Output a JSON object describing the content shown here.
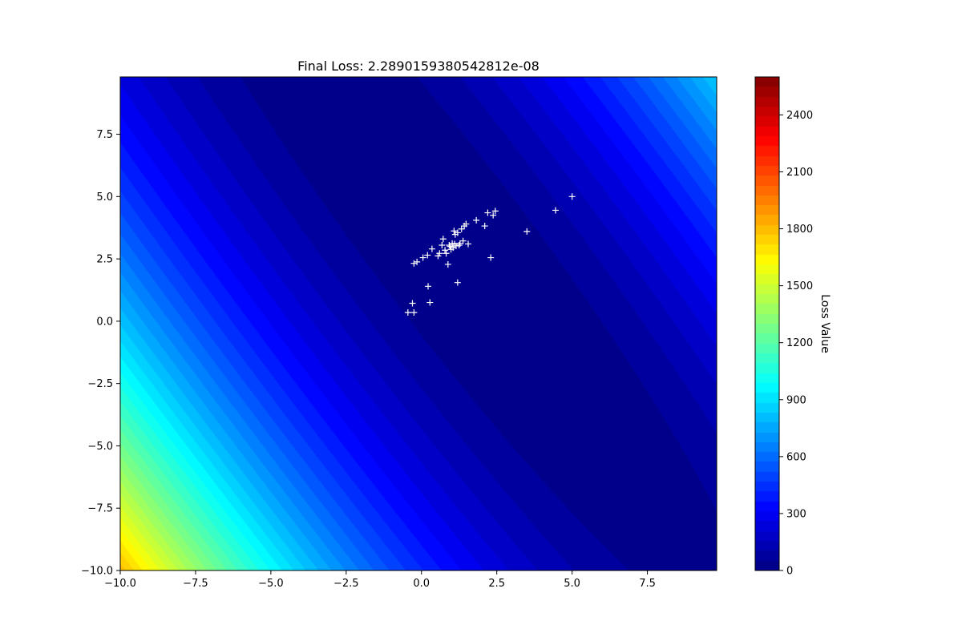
{
  "chart_data": {
    "type": "contour",
    "title": "Final Loss: 2.2890159380542812e-08",
    "xlabel": "",
    "ylabel": "",
    "xlim": [
      -10,
      9.8
    ],
    "ylim": [
      -10,
      9.8
    ],
    "x_ticks": [
      -10.0,
      -7.5,
      -5.0,
      -2.5,
      0.0,
      2.5,
      5.0,
      7.5
    ],
    "x_tick_labels": [
      "−10.0",
      "−7.5",
      "−5.0",
      "−2.5",
      "0.0",
      "2.5",
      "5.0",
      "7.5"
    ],
    "y_ticks": [
      -10.0,
      -7.5,
      -5.0,
      -2.5,
      0.0,
      2.5,
      5.0,
      7.5
    ],
    "y_tick_labels": [
      "−10.0",
      "−7.5",
      "−5.0",
      "−2.5",
      "0.0",
      "2.5",
      "5.0",
      "7.5"
    ],
    "colormap": "jet",
    "colorbar": {
      "label": "Loss Value",
      "range": [
        0,
        2600
      ],
      "levels": 50,
      "ticks": [
        0,
        300,
        600,
        900,
        1200,
        1500,
        1800,
        2100,
        2400
      ],
      "tick_labels": [
        "0",
        "300",
        "600",
        "900",
        "1200",
        "1500",
        "1800",
        "2100",
        "2400"
      ]
    },
    "surface": {
      "minimum": [
        1,
        3
      ],
      "quadratic": {
        "a": 5,
        "b": 6,
        "c": 2
      }
    },
    "marker": {
      "symbol": "+",
      "color": "#ffffff"
    },
    "points": [
      [
        -0.45,
        0.35
      ],
      [
        -0.25,
        0.35
      ],
      [
        -0.3,
        0.72
      ],
      [
        0.28,
        0.75
      ],
      [
        0.22,
        1.4
      ],
      [
        1.2,
        1.55
      ],
      [
        2.3,
        2.55
      ],
      [
        3.5,
        3.6
      ],
      [
        4.45,
        4.45
      ],
      [
        5.0,
        5.0
      ],
      [
        -0.25,
        2.32
      ],
      [
        -0.15,
        2.38
      ],
      [
        0.05,
        2.55
      ],
      [
        0.2,
        2.65
      ],
      [
        0.35,
        2.9
      ],
      [
        0.55,
        2.62
      ],
      [
        0.6,
        2.72
      ],
      [
        0.68,
        3.05
      ],
      [
        0.72,
        3.3
      ],
      [
        0.82,
        2.72
      ],
      [
        0.88,
        2.28
      ],
      [
        0.92,
        3.05
      ],
      [
        0.98,
        2.88
      ],
      [
        1.02,
        3.12
      ],
      [
        1.08,
        3.62
      ],
      [
        1.12,
        3.48
      ],
      [
        1.15,
        3.02
      ],
      [
        1.2,
        3.55
      ],
      [
        1.28,
        3.12
      ],
      [
        1.33,
        3.7
      ],
      [
        1.38,
        3.22
      ],
      [
        1.42,
        3.82
      ],
      [
        1.48,
        3.9
      ],
      [
        1.55,
        3.1
      ],
      [
        1.82,
        4.05
      ],
      [
        2.1,
        3.82
      ],
      [
        2.2,
        4.35
      ],
      [
        2.38,
        4.25
      ],
      [
        2.45,
        4.42
      ],
      [
        0.95,
        3.0
      ],
      [
        1.05,
        2.95
      ],
      [
        1.25,
        3.05
      ],
      [
        0.78,
        2.85
      ],
      [
        1.1,
        3.1
      ]
    ]
  }
}
